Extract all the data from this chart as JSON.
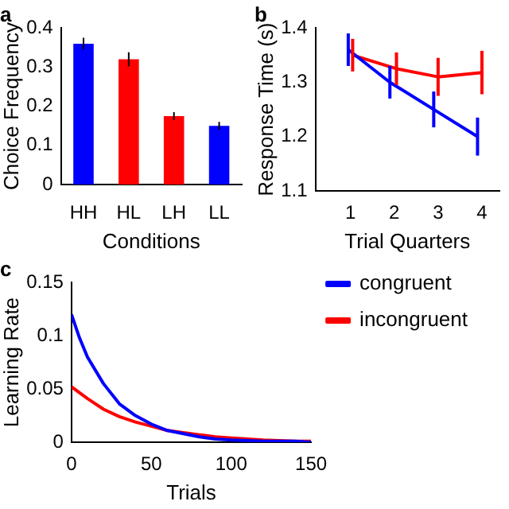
{
  "chart_data": [
    {
      "type": "bar",
      "title": "a",
      "xlabel": "Conditions",
      "ylabel": "Choice Frequency",
      "categories": [
        "HH",
        "HL",
        "LH",
        "LL"
      ],
      "values": [
        0.36,
        0.32,
        0.175,
        0.15
      ],
      "colors": [
        "#0000ff",
        "#ff0000",
        "#ff0000",
        "#0000ff"
      ],
      "errors": [
        0.015,
        0.018,
        0.01,
        0.01
      ],
      "ylim": [
        0,
        0.4
      ],
      "yticks": [
        0,
        0.1,
        0.2,
        0.3,
        0.4
      ],
      "grid": false,
      "legend": false
    },
    {
      "type": "line",
      "title": "b",
      "xlabel": "Trial Quarters",
      "ylabel": "Response Time (s)",
      "xlim": [
        0.2,
        4.4
      ],
      "xticks": [
        1,
        2,
        3,
        4
      ],
      "ylim": [
        1.1,
        1.4
      ],
      "yticks": [
        1.1,
        1.2,
        1.3,
        1.4
      ],
      "grid": false,
      "legend": false,
      "marker": "none",
      "series": [
        {
          "color": "#0000ff",
          "x": [
            0.95,
            1.9,
            2.9,
            3.9
          ],
          "values": [
            1.36,
            1.3,
            1.25,
            1.2
          ],
          "errors": [
            0.03,
            0.03,
            0.033,
            0.035
          ]
        },
        {
          "color": "#ff0000",
          "x": [
            1.05,
            2.05,
            3,
            4
          ],
          "values": [
            1.35,
            1.325,
            1.31,
            1.318
          ],
          "errors": [
            0.03,
            0.03,
            0.035,
            0.04
          ]
        }
      ]
    },
    {
      "type": "line",
      "title": "c",
      "xlabel": "Trials",
      "ylabel": "Learning Rate",
      "xlim": [
        0,
        150
      ],
      "xticks": [
        0,
        50,
        100,
        150
      ],
      "ylim": [
        0,
        0.15
      ],
      "yticks": [
        0,
        0.05,
        0.1,
        0.15
      ],
      "grid": false,
      "legend": "right",
      "marker": "none",
      "series": [
        {
          "name": "congruent",
          "color": "#0000ff",
          "x": [
            0,
            5,
            10,
            20,
            30,
            40,
            50,
            60,
            70,
            80,
            90,
            100,
            120,
            140,
            150
          ],
          "values": [
            0.12,
            0.098,
            0.08,
            0.055,
            0.036,
            0.025,
            0.017,
            0.011,
            0.008,
            0.005,
            0.003,
            0.002,
            0.001,
            0.001,
            0
          ]
        },
        {
          "name": "incongruent",
          "color": "#ff0000",
          "x": [
            0,
            10,
            20,
            30,
            40,
            50,
            60,
            70,
            80,
            90,
            100,
            120,
            140,
            150
          ],
          "values": [
            0.052,
            0.041,
            0.031,
            0.024,
            0.019,
            0.015,
            0.011,
            0.009,
            0.007,
            0.005,
            0.004,
            0.002,
            0.001,
            0.001
          ]
        }
      ]
    }
  ]
}
